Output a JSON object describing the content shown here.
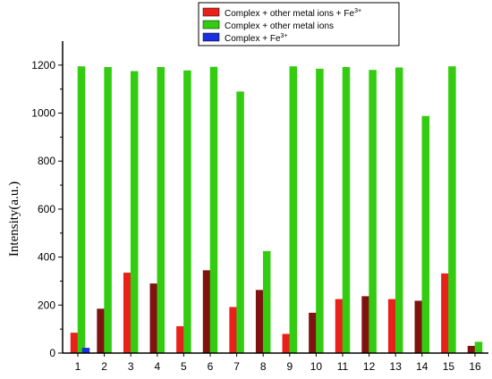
{
  "chart_data": {
    "type": "bar",
    "xlabel": "",
    "ylabel": "Intensity(a.u.)",
    "ylim": [
      0,
      1300
    ],
    "yticks": [
      0,
      200,
      400,
      600,
      800,
      1000,
      1200
    ],
    "categories": [
      "1",
      "2",
      "3",
      "4",
      "5",
      "6",
      "7",
      "8",
      "9",
      "10",
      "11",
      "12",
      "13",
      "14",
      "15",
      "16"
    ],
    "series": [
      {
        "name": "Complex + other metal ions + Fe3+",
        "color": "#e8221b",
        "values": [
          85,
          185,
          335,
          290,
          112,
          345,
          192,
          263,
          80,
          168,
          225,
          237,
          225,
          218,
          332,
          30
        ]
      },
      {
        "name": "Complex + other metal ions",
        "color": "#33cc11",
        "values": [
          1195,
          1192,
          1175,
          1192,
          1178,
          1193,
          1090,
          425,
          1195,
          1185,
          1192,
          1180,
          1190,
          988,
          1195,
          47
        ]
      },
      {
        "name": "Complex + Fe3+",
        "color": "#1a2fdd",
        "values": [
          22,
          null,
          null,
          null,
          null,
          null,
          null,
          null,
          null,
          null,
          null,
          null,
          null,
          null,
          null,
          null
        ]
      }
    ],
    "legend": {
      "position": "top-right",
      "entries": [
        {
          "base": "Complex + other metal ions + Fe",
          "sup": "3+"
        },
        {
          "base": "Complex + other metal ions",
          "sup": ""
        },
        {
          "base": "Complex + Fe",
          "sup": "3+"
        }
      ]
    },
    "grid": false
  }
}
